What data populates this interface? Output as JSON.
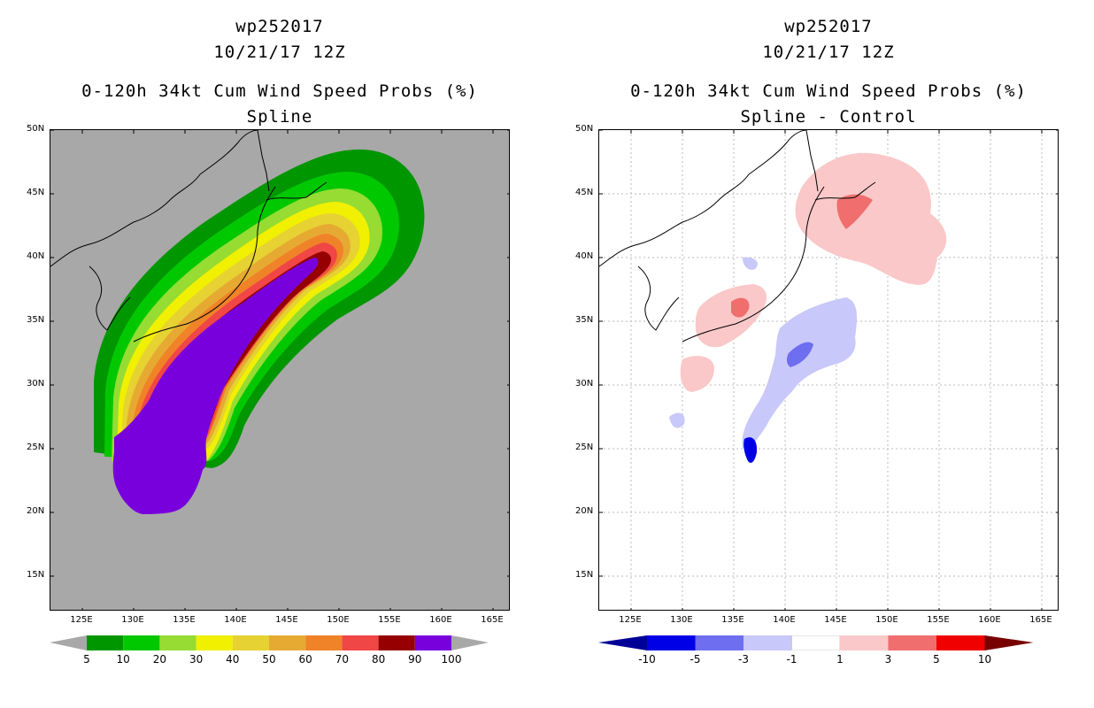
{
  "left_panel": {
    "title_line1": "wp252017",
    "title_line2": "10/21/17 12Z",
    "title_line3": "0-120h 34kt Cum Wind Speed Probs (%)",
    "title_line4": "Spline",
    "background_color": "#a8a8a8",
    "colorbar": {
      "colors": [
        "#009600",
        "#00c800",
        "#96dc32",
        "#f0f000",
        "#e6d232",
        "#e6aa32",
        "#f08228",
        "#f04646",
        "#960000",
        "#7800dc"
      ],
      "labels": [
        "5",
        "10",
        "20",
        "30",
        "40",
        "50",
        "60",
        "70",
        "80",
        "90",
        "100"
      ]
    }
  },
  "right_panel": {
    "title_line1": "wp252017",
    "title_line2": "10/21/17 12Z",
    "title_line3": "0-120h 34kt Cum Wind Speed Probs (%)",
    "title_line4": "Spline - Control",
    "colorbar": {
      "colors": [
        "#0000e6",
        "#6e6ef0",
        "#c8c8fa",
        "#ffffff",
        "#fac8c8",
        "#f06e6e",
        "#f00000"
      ],
      "end_colors": [
        "#000096",
        "#780000"
      ],
      "labels": [
        "-10",
        "-5",
        "-3",
        "-1",
        "1",
        "3",
        "5",
        "10"
      ]
    }
  },
  "axes": {
    "lat_labels": [
      "50N",
      "45N",
      "40N",
      "35N",
      "30N",
      "25N",
      "20N",
      "15N"
    ],
    "lon_labels": [
      "125E",
      "130E",
      "135E",
      "140E",
      "145E",
      "150E",
      "155E",
      "160E",
      "165E"
    ]
  }
}
